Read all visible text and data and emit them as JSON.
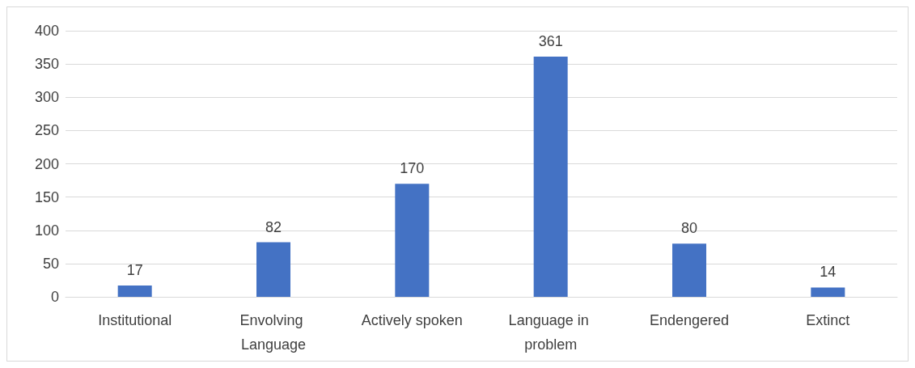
{
  "chart_data": {
    "type": "bar",
    "categories": [
      "Institutional",
      "Envolving Language",
      "Actively spoken",
      "Language in problem",
      "Endengered",
      "Extinct"
    ],
    "values": [
      17,
      82,
      170,
      361,
      80,
      14
    ],
    "color": "#4472c4",
    "ylim": [
      0,
      400
    ],
    "yticks": [
      0,
      50,
      100,
      150,
      200,
      250,
      300,
      350,
      400
    ],
    "grid": "y",
    "data_labels": true
  }
}
